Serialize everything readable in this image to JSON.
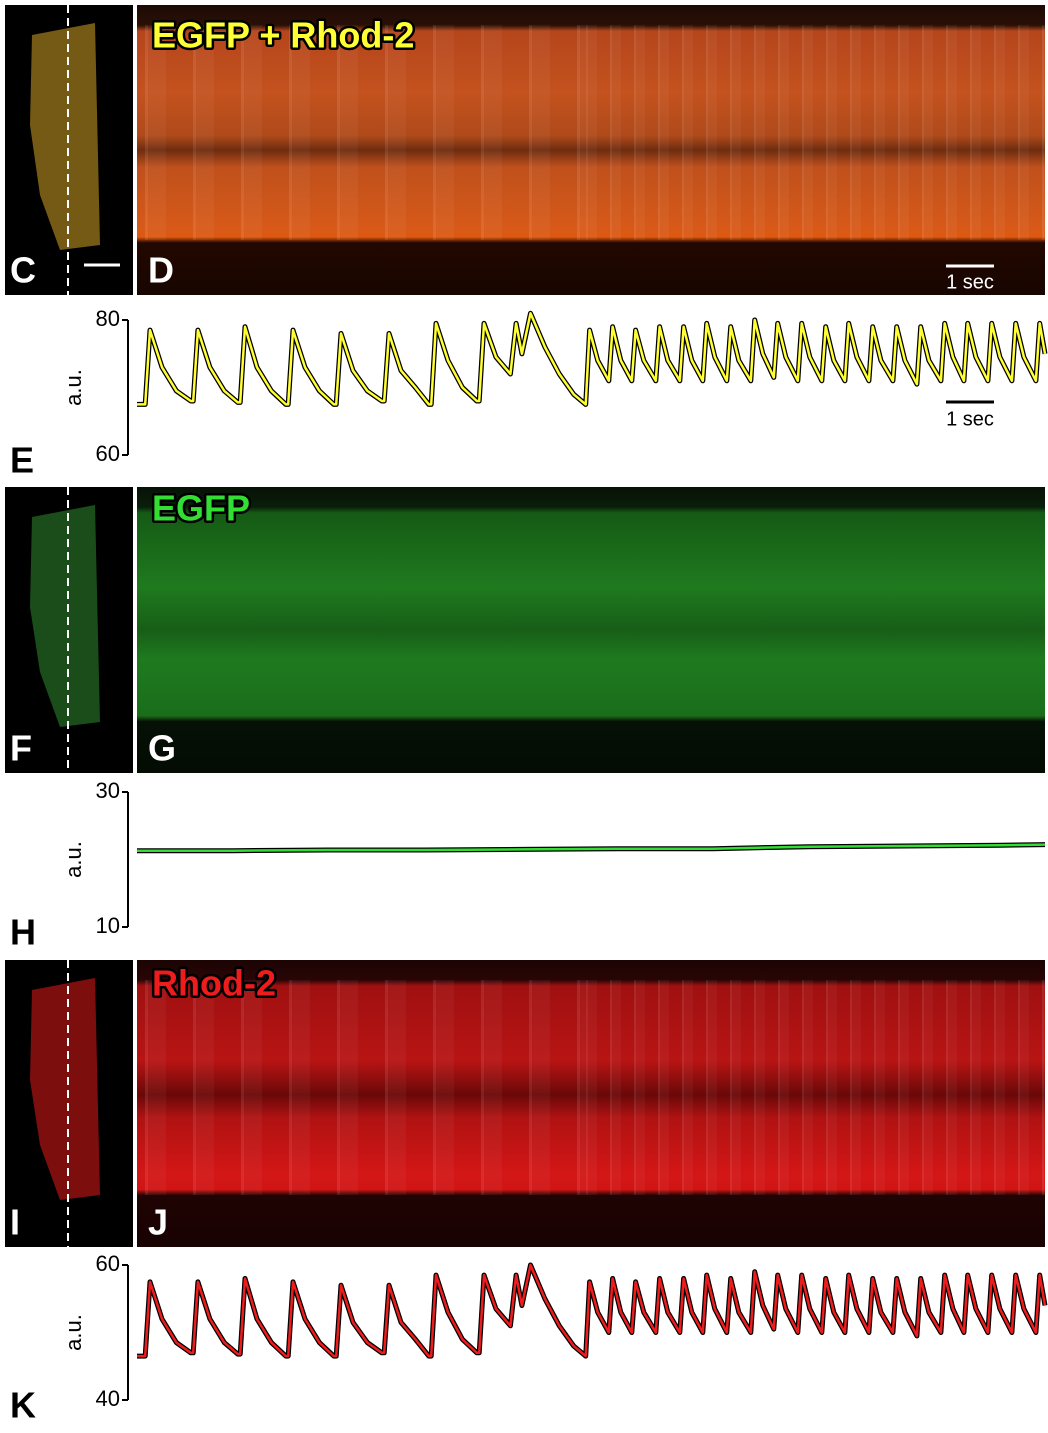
{
  "image_rows": [
    {
      "thumb_label": "C",
      "kymo_label": "D",
      "title": "EGFP + Rhod-2",
      "scale_bar": "1 sec"
    },
    {
      "thumb_label": "F",
      "kymo_label": "G",
      "title": "EGFP"
    },
    {
      "thumb_label": "I",
      "kymo_label": "J",
      "title": "Rhod-2"
    }
  ],
  "chart_data": [
    {
      "type": "line",
      "panel_label": "E",
      "ylabel": "a.u.",
      "ylim": [
        60,
        80
      ],
      "yticks": [
        60,
        80
      ],
      "xlim": [
        0,
        18.92
      ],
      "scale_bar": {
        "value": 1,
        "label": "1 sec"
      },
      "x": [
        0,
        0.17,
        0.27,
        0.52,
        0.82,
        1.12,
        1.17,
        1.27,
        1.52,
        1.82,
        2.1,
        2.15,
        2.25,
        2.5,
        2.8,
        3.1,
        3.15,
        3.25,
        3.5,
        3.8,
        4.1,
        4.15,
        4.25,
        4.5,
        4.8,
        5.1,
        5.15,
        5.25,
        5.5,
        5.8,
        6.08,
        6.13,
        6.23,
        6.48,
        6.78,
        7.08,
        7.13,
        7.23,
        7.48,
        7.78,
        7.9,
        8.02,
        8.2,
        8.5,
        8.8,
        9.1,
        9.35,
        9.43,
        9.6,
        9.83,
        9.91,
        10.08,
        10.31,
        10.39,
        10.56,
        10.81,
        10.89,
        11.06,
        11.31,
        11.39,
        11.56,
        11.79,
        11.87,
        12.04,
        12.29,
        12.37,
        12.54,
        12.79,
        12.87,
        13.04,
        13.27,
        13.35,
        13.52,
        13.77,
        13.85,
        14.02,
        14.27,
        14.35,
        14.52,
        14.75,
        14.83,
        15,
        15.25,
        15.33,
        15.5,
        15.75,
        15.83,
        16,
        16.25,
        16.33,
        16.5,
        16.75,
        16.83,
        17,
        17.23,
        17.31,
        17.48,
        17.73,
        17.81,
        17.98,
        18.23,
        18.31,
        18.48,
        18.73,
        18.81,
        18.92
      ],
      "series": [
        {
          "color": "#ffff33",
          "values": [
            67.5,
            67.5,
            78.5,
            73,
            69.5,
            68,
            68,
            78.5,
            73,
            69.5,
            67.8,
            67.8,
            79,
            73,
            69.5,
            67.5,
            67.5,
            78.5,
            73,
            69.5,
            67.5,
            67.5,
            78,
            72.5,
            69.5,
            68,
            68,
            78,
            72.5,
            70,
            67.5,
            67.5,
            79.5,
            74,
            70,
            68,
            68,
            79.5,
            74.5,
            72,
            79.5,
            75,
            81,
            76,
            72,
            69,
            67.5,
            78.5,
            74,
            71,
            79,
            74,
            71,
            78.5,
            74,
            71,
            79,
            74,
            71,
            79,
            74,
            71,
            79.5,
            74.5,
            71,
            79,
            74,
            71,
            80,
            75,
            71.5,
            79.5,
            74.5,
            71,
            79.5,
            74.5,
            71,
            79,
            74,
            71,
            79.5,
            74.5,
            71,
            79,
            74,
            71,
            79,
            74,
            70.5,
            79,
            74,
            71,
            79.5,
            74.5,
            71,
            79.5,
            74.5,
            71,
            79.5,
            74.5,
            71,
            79.5,
            74.5,
            71,
            79.5,
            75
          ]
        }
      ]
    },
    {
      "type": "line",
      "panel_label": "H",
      "ylabel": "a.u.",
      "ylim": [
        10,
        30
      ],
      "yticks": [
        10,
        30
      ],
      "xlim": [
        0,
        18.92
      ],
      "x": [
        0,
        2,
        4,
        6,
        8,
        10,
        12,
        14,
        16,
        18,
        18.92
      ],
      "series": [
        {
          "color": "#33dd33",
          "values": [
            21.3,
            21.3,
            21.4,
            21.4,
            21.5,
            21.6,
            21.6,
            21.9,
            22.0,
            22.1,
            22.2
          ]
        }
      ]
    },
    {
      "type": "line",
      "panel_label": "K",
      "ylabel": "a.u.",
      "ylim": [
        40,
        60
      ],
      "yticks": [
        40,
        60
      ],
      "xlim": [
        0,
        18.92
      ],
      "x": [
        0,
        0.17,
        0.27,
        0.52,
        0.82,
        1.12,
        1.17,
        1.27,
        1.52,
        1.82,
        2.1,
        2.15,
        2.25,
        2.5,
        2.8,
        3.1,
        3.15,
        3.25,
        3.5,
        3.8,
        4.1,
        4.15,
        4.25,
        4.5,
        4.8,
        5.1,
        5.15,
        5.25,
        5.5,
        5.8,
        6.08,
        6.13,
        6.23,
        6.48,
        6.78,
        7.08,
        7.13,
        7.23,
        7.48,
        7.78,
        7.9,
        8.02,
        8.2,
        8.5,
        8.8,
        9.1,
        9.35,
        9.43,
        9.6,
        9.83,
        9.91,
        10.08,
        10.31,
        10.39,
        10.56,
        10.81,
        10.89,
        11.06,
        11.31,
        11.39,
        11.56,
        11.79,
        11.87,
        12.04,
        12.29,
        12.37,
        12.54,
        12.79,
        12.87,
        13.04,
        13.27,
        13.35,
        13.52,
        13.77,
        13.85,
        14.02,
        14.27,
        14.35,
        14.52,
        14.75,
        14.83,
        15,
        15.25,
        15.33,
        15.5,
        15.75,
        15.83,
        16,
        16.25,
        16.33,
        16.5,
        16.75,
        16.83,
        17,
        17.23,
        17.31,
        17.48,
        17.73,
        17.81,
        17.98,
        18.23,
        18.31,
        18.48,
        18.73,
        18.81,
        18.92
      ],
      "series": [
        {
          "color": "#ee1c1c",
          "values": [
            46.5,
            46.5,
            57.5,
            52,
            48.5,
            47,
            47,
            57.5,
            52,
            48.5,
            46.8,
            46.8,
            58,
            52,
            48.5,
            46.5,
            46.5,
            57.5,
            52,
            48.5,
            46.5,
            46.5,
            57,
            51.5,
            48.5,
            47,
            47,
            57,
            51.5,
            49,
            46.5,
            46.5,
            58.5,
            53,
            49,
            47,
            47,
            58.5,
            53.5,
            51,
            58.5,
            54,
            60,
            55,
            51,
            48,
            46.5,
            57.5,
            53,
            50,
            58,
            53,
            50,
            57.5,
            53,
            50,
            58,
            53,
            50,
            58,
            53,
            50,
            58.5,
            53.5,
            50,
            58,
            53,
            50,
            59,
            54,
            50.5,
            58.5,
            53.5,
            50,
            58.5,
            53.5,
            50,
            58,
            53,
            50,
            58.5,
            53.5,
            50,
            58,
            53,
            50,
            58,
            53,
            49.5,
            58,
            53,
            50,
            58.5,
            53.5,
            50,
            58.5,
            53.5,
            50,
            58.5,
            53.5,
            50,
            58.5,
            53.5,
            50,
            58.5,
            54
          ]
        }
      ]
    }
  ]
}
